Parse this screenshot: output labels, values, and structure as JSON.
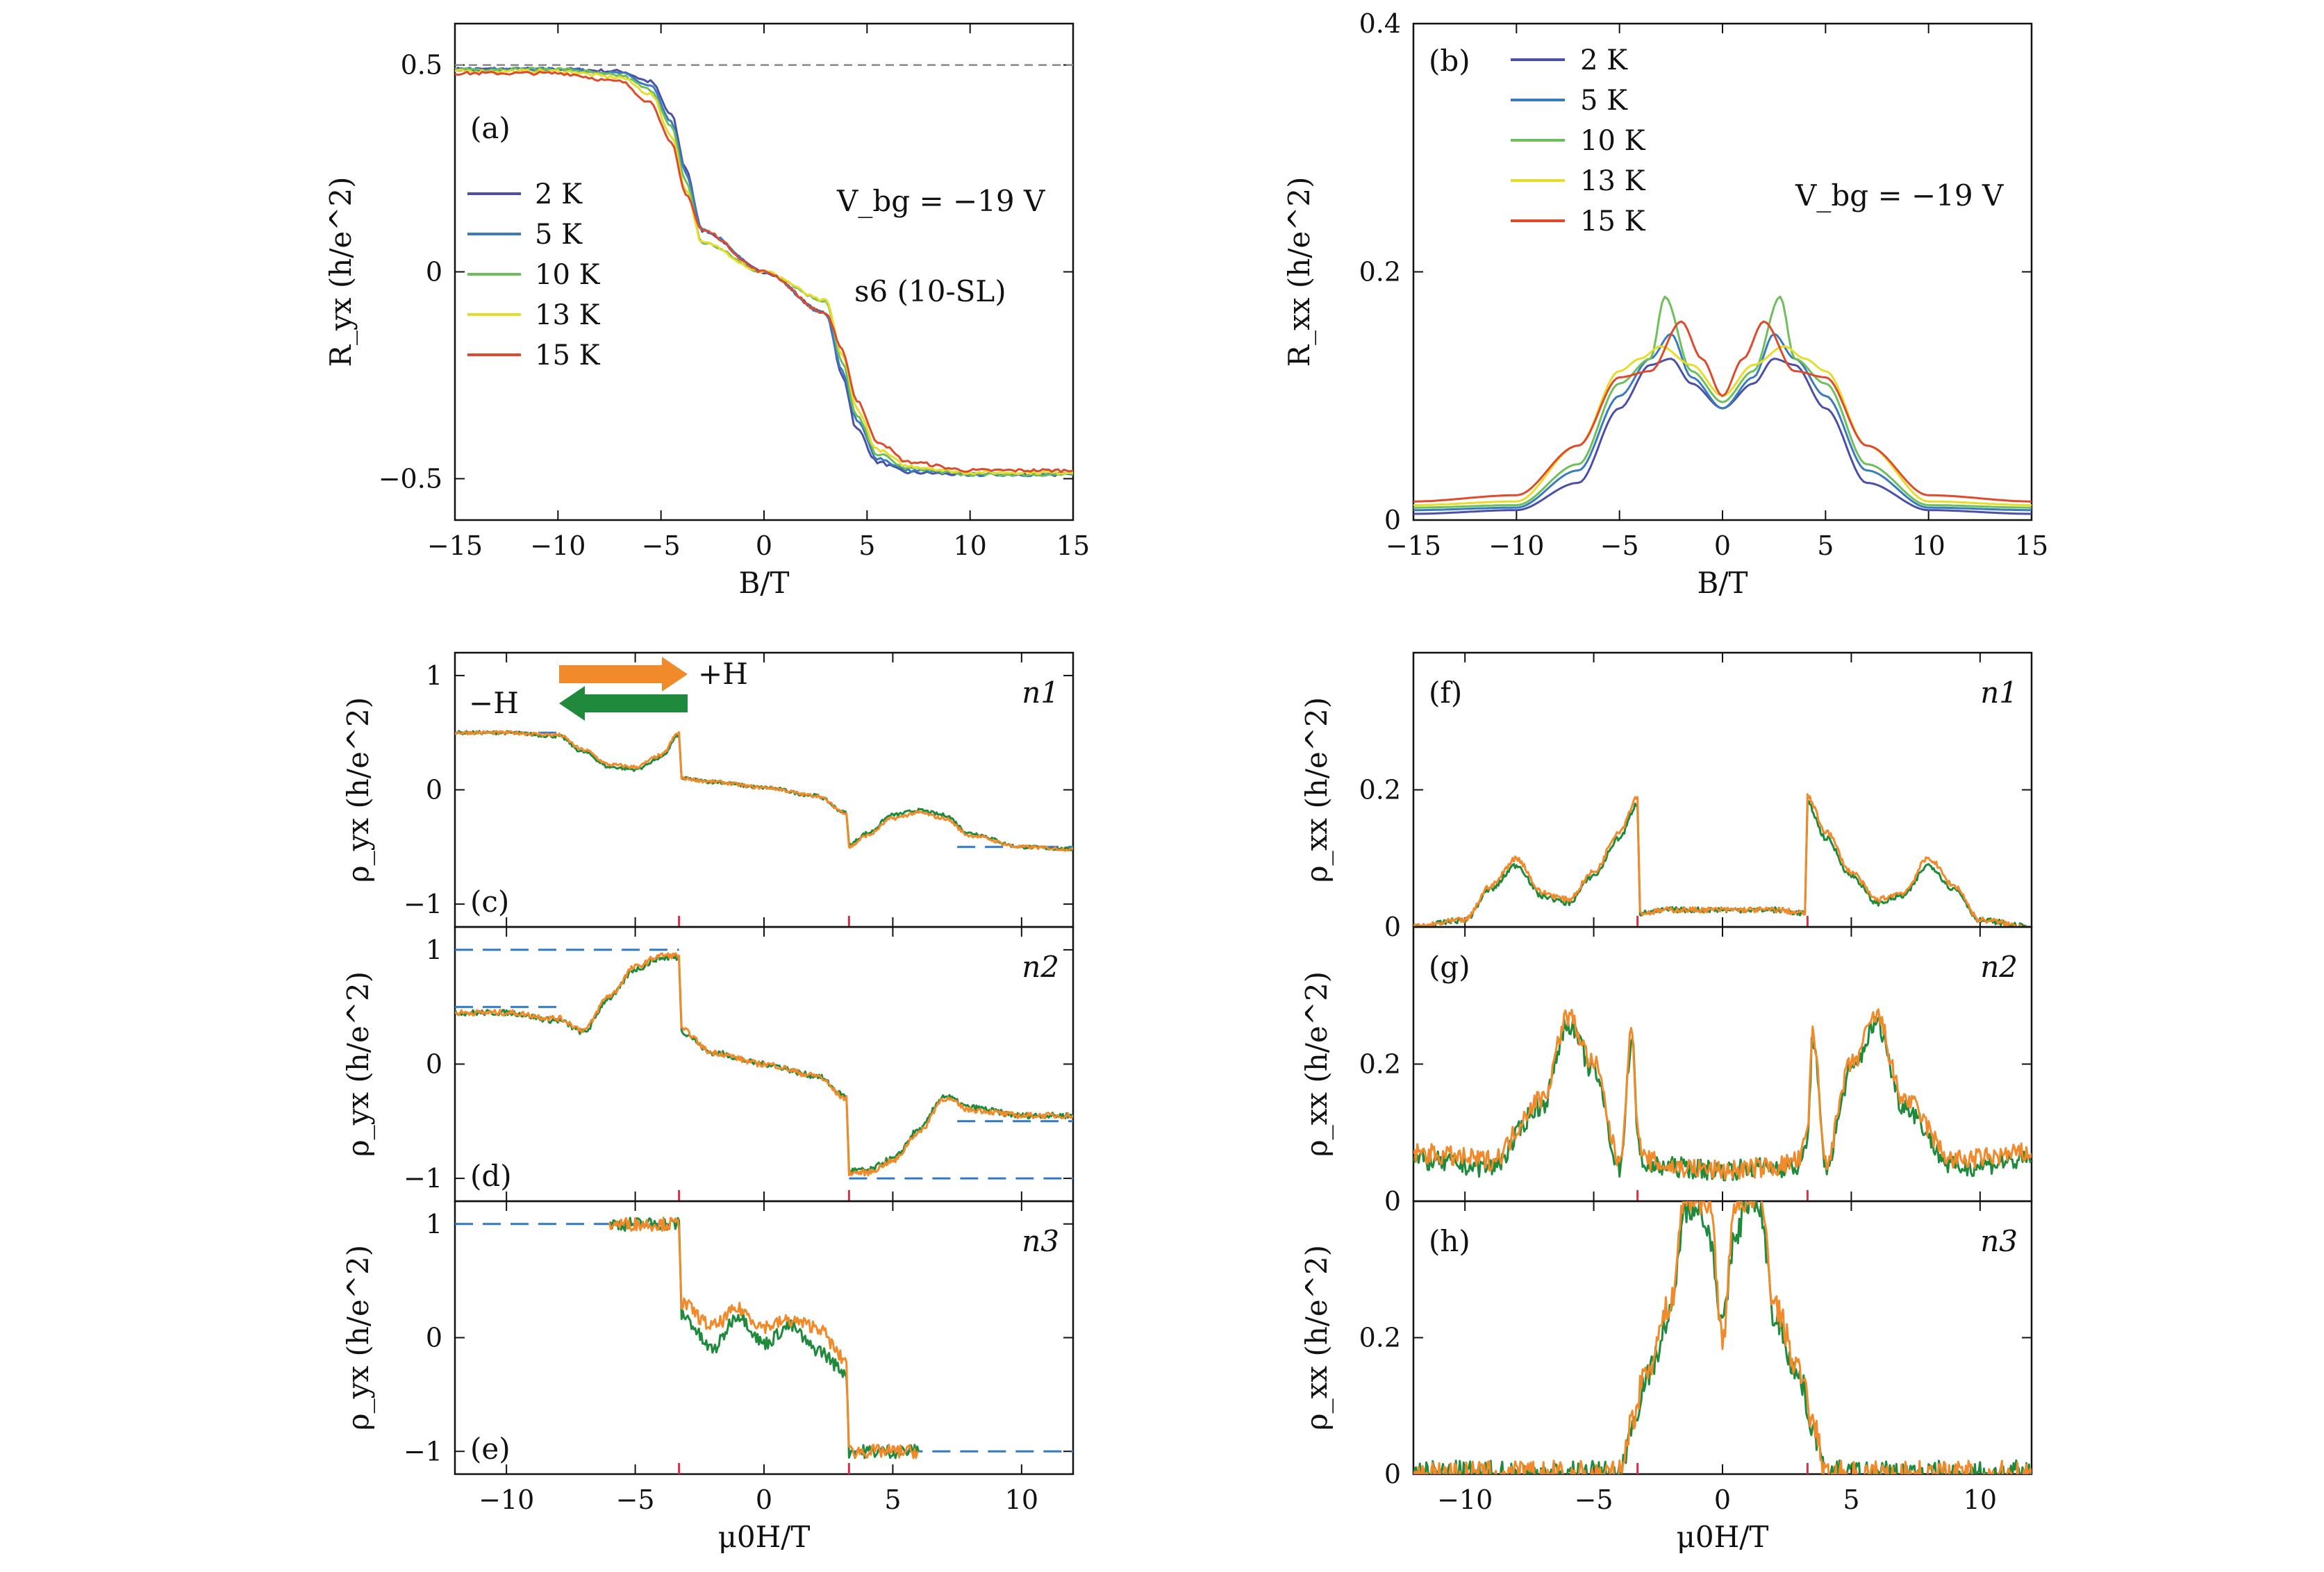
{
  "colors": {
    "t2K": "#4b4fa6",
    "t5K": "#3a7bbf",
    "t10K": "#6cbf5a",
    "t13K": "#e6dc2a",
    "t15K": "#e04a2c",
    "sweep_up": "#f08a2a",
    "sweep_down": "#1f8a3c",
    "plateau_dash": "#2f78c4",
    "marker": "#d9304a",
    "ref_dash": "#888888"
  },
  "chart_data": [
    {
      "panel": "a",
      "type": "line",
      "xlabel": "B/T",
      "ylabel": "R_yx (h/e^2)",
      "xlim": [
        -15,
        15
      ],
      "ylim": [
        -0.6,
        0.6
      ],
      "xticks": [
        "−15",
        "−10",
        "−5",
        "0",
        "5",
        "10",
        "15"
      ],
      "yticks": [
        "0.5",
        "0",
        "−0.5"
      ],
      "annotations": [
        "V_bg = −19 V",
        "s6 (10-SL)"
      ],
      "legend": [
        "2 K",
        "5 K",
        "10 K",
        "13 K",
        "15 K"
      ],
      "series": [
        {
          "name": "2 K",
          "x": [
            -15,
            -10,
            -7,
            -5.5,
            -4.5,
            -3.8,
            -3,
            0,
            3,
            3.8,
            4.5,
            5.5,
            7,
            10,
            15
          ],
          "y": [
            0.49,
            0.49,
            0.485,
            0.46,
            0.38,
            0.25,
            0.1,
            0,
            -0.1,
            -0.25,
            -0.38,
            -0.46,
            -0.485,
            -0.49,
            -0.49
          ]
        },
        {
          "name": "5 K",
          "x": [
            -15,
            -10,
            -7,
            -5.5,
            -4.5,
            -3.8,
            -3,
            0,
            3,
            3.8,
            4.5,
            5.5,
            7,
            10,
            15
          ],
          "y": [
            0.49,
            0.49,
            0.48,
            0.45,
            0.36,
            0.24,
            0.1,
            0,
            -0.1,
            -0.24,
            -0.36,
            -0.45,
            -0.48,
            -0.49,
            -0.49
          ]
        },
        {
          "name": "10 K",
          "x": [
            -15,
            -10,
            -7,
            -5.5,
            -4.5,
            -3.8,
            -3,
            0,
            3,
            3.8,
            4.5,
            5.5,
            7,
            10,
            15
          ],
          "y": [
            0.49,
            0.49,
            0.475,
            0.44,
            0.35,
            0.22,
            0.07,
            0,
            -0.07,
            -0.22,
            -0.35,
            -0.44,
            -0.475,
            -0.49,
            -0.49
          ]
        },
        {
          "name": "13 K",
          "x": [
            -15,
            -10,
            -7,
            -5.5,
            -4.5,
            -3.8,
            -3,
            0,
            3,
            3.8,
            4.5,
            5.5,
            7,
            10,
            15
          ],
          "y": [
            0.485,
            0.485,
            0.47,
            0.43,
            0.33,
            0.2,
            0.07,
            0,
            -0.07,
            -0.2,
            -0.33,
            -0.43,
            -0.47,
            -0.485,
            -0.485
          ]
        },
        {
          "name": "15 K",
          "x": [
            -15,
            -10,
            -7,
            -5.5,
            -4.5,
            -3.8,
            -3,
            0,
            3,
            3.8,
            4.5,
            5.5,
            7,
            10,
            15
          ],
          "y": [
            0.48,
            0.48,
            0.46,
            0.41,
            0.31,
            0.19,
            0.1,
            0,
            -0.1,
            -0.19,
            -0.31,
            -0.41,
            -0.46,
            -0.48,
            -0.48
          ]
        }
      ]
    },
    {
      "panel": "b",
      "type": "line",
      "xlabel": "B/T",
      "ylabel": "R_xx (h/e^2)",
      "xlim": [
        -15,
        15
      ],
      "ylim": [
        0,
        0.4
      ],
      "xticks": [
        "−15",
        "−10",
        "−5",
        "0",
        "5",
        "10",
        "15"
      ],
      "yticks": [
        "0",
        "0.2",
        "0.4"
      ],
      "annotations": [
        "V_bg = −19 V"
      ],
      "legend": [
        "2 K",
        "5 K",
        "10 K",
        "13 K",
        "15 K"
      ],
      "series": [
        {
          "name": "2 K",
          "x": [
            -15,
            -10,
            -7,
            -5,
            -3.5,
            -2.5,
            -1.5,
            0,
            1.5,
            2.5,
            3.5,
            5,
            7,
            10,
            15
          ],
          "y": [
            0.005,
            0.008,
            0.03,
            0.09,
            0.125,
            0.13,
            0.11,
            0.09,
            0.11,
            0.13,
            0.125,
            0.09,
            0.03,
            0.008,
            0.005
          ]
        },
        {
          "name": "5 K",
          "x": [
            -15,
            -10,
            -7,
            -5,
            -3.5,
            -2.5,
            -1.5,
            0,
            1.5,
            2.5,
            3.5,
            5,
            7,
            10,
            15
          ],
          "y": [
            0.008,
            0.01,
            0.04,
            0.1,
            0.13,
            0.15,
            0.115,
            0.09,
            0.115,
            0.15,
            0.13,
            0.1,
            0.04,
            0.01,
            0.008
          ]
        },
        {
          "name": "10 K",
          "x": [
            -15,
            -10,
            -7,
            -5,
            -3.5,
            -2.8,
            -1.5,
            0,
            1.5,
            2.8,
            3.5,
            5,
            7,
            10,
            15
          ],
          "y": [
            0.01,
            0.012,
            0.045,
            0.11,
            0.13,
            0.18,
            0.12,
            0.095,
            0.12,
            0.18,
            0.13,
            0.11,
            0.045,
            0.012,
            0.01
          ]
        },
        {
          "name": "13 K",
          "x": [
            -15,
            -10,
            -7,
            -5,
            -4,
            -3,
            -1.5,
            0,
            1.5,
            3,
            4,
            5,
            7,
            10,
            15
          ],
          "y": [
            0.012,
            0.015,
            0.06,
            0.12,
            0.13,
            0.14,
            0.125,
            0.1,
            0.125,
            0.14,
            0.13,
            0.12,
            0.06,
            0.015,
            0.012
          ]
        },
        {
          "name": "15 K",
          "x": [
            -15,
            -10,
            -7,
            -5,
            -3.5,
            -2,
            -1,
            0,
            1,
            2,
            3.5,
            5,
            7,
            10,
            15
          ],
          "y": [
            0.015,
            0.02,
            0.06,
            0.115,
            0.12,
            0.16,
            0.13,
            0.1,
            0.13,
            0.16,
            0.12,
            0.115,
            0.06,
            0.02,
            0.015
          ]
        }
      ]
    },
    {
      "panel": "c",
      "type": "line",
      "ylabel": "ρ_yx (h/e^2)",
      "xlim": [
        -12,
        12
      ],
      "ylim": [
        -1.2,
        1.2
      ],
      "yticks": [
        "1",
        "0",
        "−1"
      ],
      "tag": "n1",
      "arrow_labels": [
        "+H",
        "−H"
      ],
      "series": [
        {
          "name": "+H",
          "x": [
            -12,
            -10,
            -8,
            -7,
            -6,
            -5,
            -4,
            -3.3,
            -3.2,
            -2,
            0,
            2,
            3.2,
            3.3,
            4,
            5,
            6,
            7,
            8,
            10,
            12
          ],
          "y": [
            0.5,
            0.5,
            0.48,
            0.35,
            0.22,
            0.2,
            0.3,
            0.5,
            0.1,
            0.07,
            0.02,
            -0.05,
            -0.2,
            -0.5,
            -0.4,
            -0.25,
            -0.2,
            -0.25,
            -0.4,
            -0.5,
            -0.52
          ]
        },
        {
          "name": "−H",
          "x": [
            -12,
            -10,
            -8,
            -7,
            -6,
            -5,
            -4,
            -3.3,
            -3.2,
            -2,
            0,
            2,
            3.2,
            3.3,
            4,
            5,
            6,
            7,
            8,
            10,
            12
          ],
          "y": [
            0.5,
            0.5,
            0.47,
            0.33,
            0.2,
            0.18,
            0.28,
            0.48,
            0.1,
            0.07,
            0.02,
            -0.05,
            -0.2,
            -0.48,
            -0.38,
            -0.22,
            -0.18,
            -0.22,
            -0.38,
            -0.5,
            -0.52
          ]
        }
      ]
    },
    {
      "panel": "d",
      "type": "line",
      "ylabel": "ρ_yx (h/e^2)",
      "xlim": [
        -12,
        12
      ],
      "ylim": [
        -1.2,
        1.2
      ],
      "yticks": [
        "1",
        "0",
        "−1"
      ],
      "tag": "n2",
      "series": [
        {
          "name": "+H",
          "x": [
            -12,
            -10,
            -8,
            -7,
            -6,
            -5,
            -4,
            -3.3,
            -3.2,
            -2,
            0,
            2,
            3.2,
            3.3,
            4,
            5,
            6,
            7,
            8,
            10,
            12
          ],
          "y": [
            0.45,
            0.45,
            0.4,
            0.3,
            0.6,
            0.85,
            0.95,
            0.95,
            0.3,
            0.1,
            0,
            -0.1,
            -0.3,
            -0.95,
            -0.95,
            -0.85,
            -0.6,
            -0.3,
            -0.4,
            -0.45,
            -0.45
          ]
        },
        {
          "name": "−H",
          "x": [
            -12,
            -10,
            -8,
            -7,
            -6,
            -5,
            -4,
            -3.3,
            -3.2,
            -2,
            0,
            2,
            3.2,
            3.3,
            4,
            5,
            6,
            7,
            8,
            10,
            12
          ],
          "y": [
            0.45,
            0.45,
            0.38,
            0.28,
            0.58,
            0.83,
            0.93,
            0.93,
            0.28,
            0.1,
            0,
            -0.1,
            -0.28,
            -0.93,
            -0.93,
            -0.83,
            -0.58,
            -0.28,
            -0.38,
            -0.45,
            -0.45
          ]
        }
      ]
    },
    {
      "panel": "e",
      "type": "line",
      "ylabel": "ρ_yx (h/e^2)",
      "xlabel": "μ0H/T",
      "xlim": [
        -12,
        12
      ],
      "ylim": [
        -1.2,
        1.2
      ],
      "xticks": [
        "−10",
        "−5",
        "0",
        "5",
        "10"
      ],
      "yticks": [
        "1",
        "0",
        "−1"
      ],
      "tag": "n3",
      "series": [
        {
          "name": "+H",
          "x": [
            -6,
            -4,
            -3.3,
            -3.2,
            -2,
            -1,
            0,
            1,
            2,
            3.2,
            3.3,
            4,
            6
          ],
          "y": [
            1,
            1,
            1,
            0.3,
            0.1,
            0.25,
            0.1,
            0.15,
            0.1,
            -0.2,
            -1,
            -1,
            -1
          ]
        },
        {
          "name": "−H",
          "x": [
            -6,
            -4,
            -3.3,
            -3.2,
            -2,
            -1,
            0,
            1,
            2,
            3.2,
            3.3,
            4,
            6
          ],
          "y": [
            1,
            1,
            1,
            0.2,
            -0.1,
            0.2,
            -0.05,
            0.1,
            -0.1,
            -0.3,
            -1,
            -1,
            -1
          ]
        }
      ]
    },
    {
      "panel": "f",
      "type": "line",
      "ylabel": "ρ_xx (h/e^2)",
      "xlim": [
        -12,
        12
      ],
      "ylim": [
        0,
        0.4
      ],
      "yticks": [
        "0",
        "0.2"
      ],
      "tag": "n1",
      "series": [
        {
          "name": "+H",
          "x": [
            -12,
            -10,
            -9,
            -8,
            -7,
            -6,
            -5,
            -4,
            -3.3,
            -3.2,
            -2,
            0,
            2,
            3.2,
            3.3,
            4,
            5,
            6,
            7,
            8,
            9,
            10,
            12
          ],
          "y": [
            0,
            0.01,
            0.06,
            0.1,
            0.05,
            0.04,
            0.08,
            0.14,
            0.19,
            0.02,
            0.025,
            0.025,
            0.025,
            0.02,
            0.19,
            0.14,
            0.08,
            0.04,
            0.05,
            0.1,
            0.06,
            0.01,
            0
          ]
        },
        {
          "name": "−H",
          "x": [
            -12,
            -10,
            -9,
            -8,
            -7,
            -6,
            -5,
            -4,
            -3.3,
            -3.2,
            -2,
            0,
            2,
            3.2,
            3.3,
            4,
            5,
            6,
            7,
            8,
            9,
            10,
            12
          ],
          "y": [
            0,
            0.01,
            0.055,
            0.09,
            0.045,
            0.035,
            0.075,
            0.13,
            0.18,
            0.02,
            0.025,
            0.025,
            0.025,
            0.02,
            0.18,
            0.13,
            0.075,
            0.035,
            0.045,
            0.09,
            0.055,
            0.01,
            0
          ]
        }
      ]
    },
    {
      "panel": "g",
      "type": "line",
      "ylabel": "ρ_xx (h/e^2)",
      "xlim": [
        -12,
        12
      ],
      "ylim": [
        0,
        0.4
      ],
      "yticks": [
        "0",
        "0.2"
      ],
      "tag": "n2",
      "series": [
        {
          "name": "+H",
          "x": [
            -12,
            -9,
            -7,
            -6,
            -5,
            -4,
            -3.5,
            -3.3,
            -3,
            -2,
            0,
            2,
            3,
            3.3,
            3.5,
            4,
            5,
            6,
            7,
            9,
            12
          ],
          "y": [
            0.07,
            0.06,
            0.15,
            0.27,
            0.2,
            0.06,
            0.25,
            0.1,
            0.06,
            0.05,
            0.045,
            0.05,
            0.06,
            0.1,
            0.25,
            0.06,
            0.2,
            0.27,
            0.15,
            0.06,
            0.07
          ]
        },
        {
          "name": "−H",
          "x": [
            -12,
            -9,
            -7,
            -6,
            -5,
            -4,
            -3.5,
            -3.3,
            -3,
            -2,
            0,
            2,
            3,
            3.3,
            3.5,
            4,
            5,
            6,
            7,
            9,
            12
          ],
          "y": [
            0.06,
            0.05,
            0.14,
            0.26,
            0.19,
            0.05,
            0.24,
            0.09,
            0.05,
            0.05,
            0.045,
            0.05,
            0.05,
            0.09,
            0.24,
            0.05,
            0.19,
            0.26,
            0.14,
            0.05,
            0.06
          ]
        }
      ]
    },
    {
      "panel": "h",
      "type": "line",
      "ylabel": "ρ_xx (h/e^2)",
      "xlabel": "μ0H/T",
      "xlim": [
        -12,
        12
      ],
      "ylim": [
        0,
        0.4
      ],
      "xticks": [
        "−10",
        "−5",
        "0",
        "5",
        "10"
      ],
      "yticks": [
        "0",
        "0.2"
      ],
      "tag": "n3",
      "series": [
        {
          "name": "+H",
          "x": [
            -12,
            -4,
            -3.5,
            -3,
            -2,
            -1.5,
            -1,
            -0.5,
            0,
            0.5,
            1,
            1.5,
            2,
            3,
            3.5,
            4,
            12
          ],
          "y": [
            0,
            0,
            0.08,
            0.15,
            0.25,
            0.4,
            0.4,
            0.4,
            0.2,
            0.4,
            0.4,
            0.4,
            0.25,
            0.15,
            0.08,
            0,
            0
          ]
        },
        {
          "name": "−H",
          "x": [
            -12,
            -4,
            -3.5,
            -3,
            -2,
            -1.5,
            -1,
            -0.5,
            0,
            0.5,
            1,
            1.5,
            2,
            3,
            3.5,
            4,
            12
          ],
          "y": [
            0,
            0,
            0.07,
            0.14,
            0.23,
            0.38,
            0.4,
            0.35,
            0.22,
            0.35,
            0.4,
            0.38,
            0.23,
            0.14,
            0.07,
            0,
            0
          ]
        }
      ]
    }
  ],
  "panel_labels": {
    "a": "(a)",
    "b": "(b)",
    "c": "(c)",
    "d": "(d)",
    "e": "(e)",
    "f": "(f)",
    "g": "(g)",
    "h": "(h)"
  }
}
